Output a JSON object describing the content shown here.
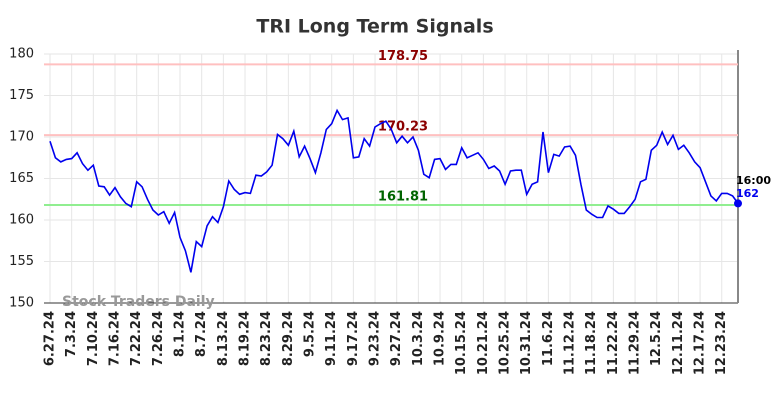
{
  "chart_data": {
    "type": "line",
    "title": "TRI Long Term Signals",
    "watermark": "Stock Traders Daily",
    "categories": [
      "6.27.24",
      null,
      null,
      null,
      "7.3.24",
      null,
      null,
      null,
      "7.10.24",
      null,
      null,
      null,
      "7.16.24",
      null,
      null,
      null,
      "7.22.24",
      null,
      null,
      null,
      "7.26.24",
      null,
      null,
      null,
      "8.1.24",
      null,
      null,
      null,
      "8.7.24",
      null,
      null,
      null,
      "8.13.24",
      null,
      null,
      null,
      "8.19.24",
      null,
      null,
      null,
      "8.23.24",
      null,
      null,
      null,
      "8.29.24",
      null,
      null,
      null,
      "9.5.24",
      null,
      null,
      null,
      "9.11.24",
      null,
      null,
      null,
      "9.17.24",
      null,
      null,
      null,
      "9.23.24",
      null,
      null,
      null,
      "9.27.24",
      null,
      null,
      null,
      "10.3.24",
      null,
      null,
      null,
      "10.9.24",
      null,
      null,
      null,
      "10.15.24",
      null,
      null,
      null,
      "10.21.24",
      null,
      null,
      null,
      "10.25.24",
      null,
      null,
      null,
      "10.31.24",
      null,
      null,
      null,
      "11.6.24",
      null,
      null,
      null,
      "11.12.24",
      null,
      null,
      null,
      "11.18.24",
      null,
      null,
      null,
      "11.22.24",
      null,
      null,
      null,
      "11.29.24",
      null,
      null,
      null,
      "12.5.24",
      null,
      null,
      null,
      "12.11.24",
      null,
      null,
      null,
      "12.17.24",
      null,
      null,
      null,
      "12.23.24",
      null,
      null,
      null
    ],
    "values": [
      169.5,
      167.5,
      167,
      167.3,
      167.4,
      168.1,
      166.8,
      166,
      166.6,
      164.1,
      164,
      163,
      163.9,
      162.8,
      162,
      161.6,
      164.6,
      164,
      162.5,
      161.2,
      160.6,
      161,
      159.6,
      160.9,
      157.9,
      156.3,
      153.7,
      157.4,
      156.8,
      159.3,
      160.4,
      159.7,
      161.6,
      164.7,
      163.7,
      163.1,
      163.3,
      163.2,
      165.4,
      165.3,
      165.8,
      166.6,
      170.3,
      169.8,
      169,
      170.7,
      167.6,
      168.9,
      167.4,
      165.7,
      168.1,
      170.9,
      171.6,
      173.2,
      172.1,
      172.3,
      167.5,
      167.6,
      169.8,
      168.9,
      171.2,
      171.6,
      171.9,
      170.9,
      169.3,
      170.1,
      169.3,
      170,
      168.4,
      165.5,
      165.1,
      167.3,
      167.4,
      166.1,
      166.7,
      166.7,
      168.7,
      167.5,
      167.8,
      168.1,
      167.3,
      166.2,
      166.5,
      165.9,
      164.3,
      165.9,
      166,
      166,
      163.1,
      164.3,
      164.6,
      170.6,
      165.7,
      167.9,
      167.7,
      168.8,
      168.9,
      167.8,
      164.3,
      161.2,
      160.7,
      160.3,
      160.3,
      161.7,
      161.3,
      160.8,
      160.8,
      161.6,
      162.5,
      164.6,
      164.9,
      168.4,
      169,
      170.6,
      169.1,
      170.2,
      168.5,
      169,
      168.1,
      167,
      166.3,
      164.6,
      162.9,
      162.3,
      163.2,
      163.2,
      162.9,
      162
    ],
    "color": "#0000ee",
    "last_time": "16:00",
    "hlines": [
      {
        "value": 178.75,
        "color": "#ffc0c0",
        "label_color": "#8b0000"
      },
      {
        "value": 170.23,
        "color": "#ffc0c0",
        "label_color": "#8b0000"
      },
      {
        "value": 161.81,
        "color": "#90ee90",
        "label_color": "#006400"
      }
    ],
    "ylim": [
      150,
      180
    ],
    "yticks": [
      150,
      155,
      160,
      165,
      170,
      175,
      180
    ],
    "grid": true
  }
}
